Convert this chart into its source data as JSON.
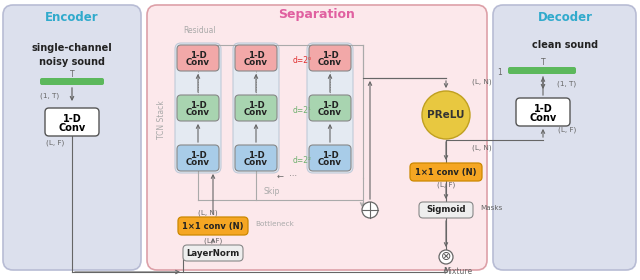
{
  "title_encoder": "Encoder",
  "title_separation": "Separation",
  "title_decoder": "Decoder",
  "encoder_bg_color": "#dce0ed",
  "separation_bg_color": "#fce8eb",
  "decoder_bg_color": "#dce0ed",
  "conv_block_color_pink": "#f2a8a8",
  "conv_block_color_green": "#a8d4b0",
  "conv_block_color_blue": "#a8cce8",
  "tcn_group_bg": "#e8eef4",
  "conv_1x1_color": "#f5a623",
  "layernorm_color": "#eeeeee",
  "sigmoid_color": "#eeeeee",
  "prelu_color": "#e8c840",
  "green_bar_color": "#5cb85c",
  "text_color_red": "#e03030",
  "text_color_green_d": "#70b070",
  "text_color_cyan": "#30aacc",
  "text_color_pink": "#e060a0",
  "arrow_color": "#666666",
  "residual_label": "Residual",
  "skip_label": "Skip",
  "bottleneck_label": "Bottleneck",
  "mixture_label": "Mixture",
  "masks_label": "Masks",
  "tcn_stack_label": "TCN Stack"
}
